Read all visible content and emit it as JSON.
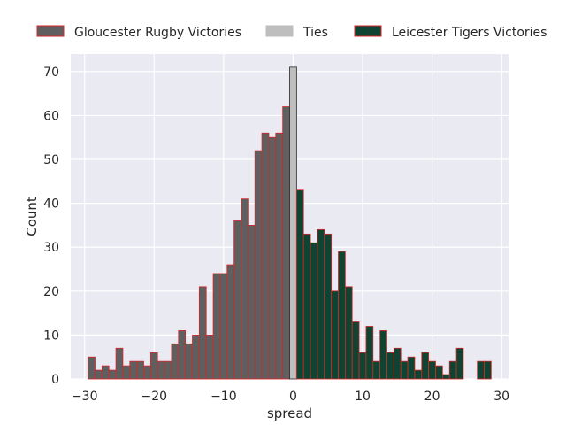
{
  "chart_data": {
    "type": "bar",
    "xlabel": "spread",
    "ylabel": "Count",
    "xlim": [
      -32,
      31
    ],
    "ylim": [
      0,
      74
    ],
    "xticks": [
      -30,
      -20,
      -10,
      0,
      10,
      20,
      30
    ],
    "yticks": [
      0,
      10,
      20,
      30,
      40,
      50,
      60,
      70
    ],
    "grid": true,
    "legend_position": "top",
    "series": [
      {
        "name": "Gloucester Rugby Victories",
        "color": "#5f5f5f",
        "edge_color": "#d62728",
        "x": [
          -29,
          -28,
          -27,
          -26,
          -25,
          -24,
          -23,
          -22,
          -21,
          -20,
          -19,
          -18,
          -17,
          -16,
          -15,
          -14,
          -13,
          -12,
          -11,
          -10,
          -9,
          -8,
          -7,
          -6,
          -5,
          -4,
          -3,
          -2,
          -1
        ],
        "values": [
          5,
          2,
          3,
          2,
          7,
          3,
          4,
          4,
          3,
          6,
          4,
          4,
          8,
          11,
          8,
          10,
          21,
          10,
          24,
          24,
          26,
          36,
          41,
          35,
          52,
          56,
          55,
          56,
          62
        ]
      },
      {
        "name": "Ties",
        "color": "#bebebe",
        "edge_color": "#262626",
        "x": [
          0
        ],
        "values": [
          71
        ]
      },
      {
        "name": "Leicester Tigers Victories",
        "color": "#0e4431",
        "edge_color": "#d62728",
        "x": [
          1,
          2,
          3,
          4,
          5,
          6,
          7,
          8,
          9,
          10,
          11,
          12,
          13,
          14,
          15,
          16,
          17,
          18,
          19,
          20,
          21,
          22,
          23,
          24,
          25,
          26,
          27,
          28
        ],
        "values": [
          43,
          33,
          31,
          34,
          33,
          20,
          29,
          21,
          13,
          6,
          12,
          4,
          11,
          6,
          7,
          4,
          5,
          2,
          6,
          4,
          3,
          1,
          4,
          7,
          0,
          0,
          4,
          4
        ]
      }
    ]
  }
}
